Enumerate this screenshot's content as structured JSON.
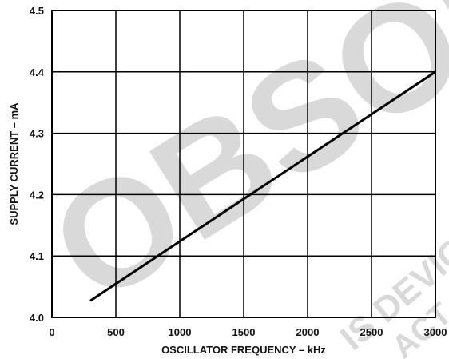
{
  "watermark": {
    "main_text": "OBSOL",
    "secondary_text": "IS DEVIC",
    "tertiary_text": "ACT",
    "color": "#d9d9d9"
  },
  "chart_data": {
    "type": "line",
    "title": "",
    "xlabel": "OSCILLATOR FREQUENCY – kHz",
    "ylabel": "SUPPLY CURRENT – mA",
    "xlim": [
      0,
      3000
    ],
    "ylim": [
      4.0,
      4.5
    ],
    "x_ticks": [
      0,
      500,
      1000,
      1500,
      2000,
      2500,
      3000
    ],
    "x_tick_labels": [
      "0",
      "500",
      "1000",
      "1500",
      "2000",
      "2500",
      "3000"
    ],
    "y_ticks": [
      4.0,
      4.1,
      4.2,
      4.3,
      4.4,
      4.5
    ],
    "y_tick_labels": [
      "4.0",
      "4.1",
      "4.2",
      "4.3",
      "4.4",
      "4.5"
    ],
    "grid": true,
    "series": [
      {
        "x": [
          300,
          3000
        ],
        "y": [
          4.027,
          4.4
        ],
        "color": "#000000"
      }
    ]
  }
}
